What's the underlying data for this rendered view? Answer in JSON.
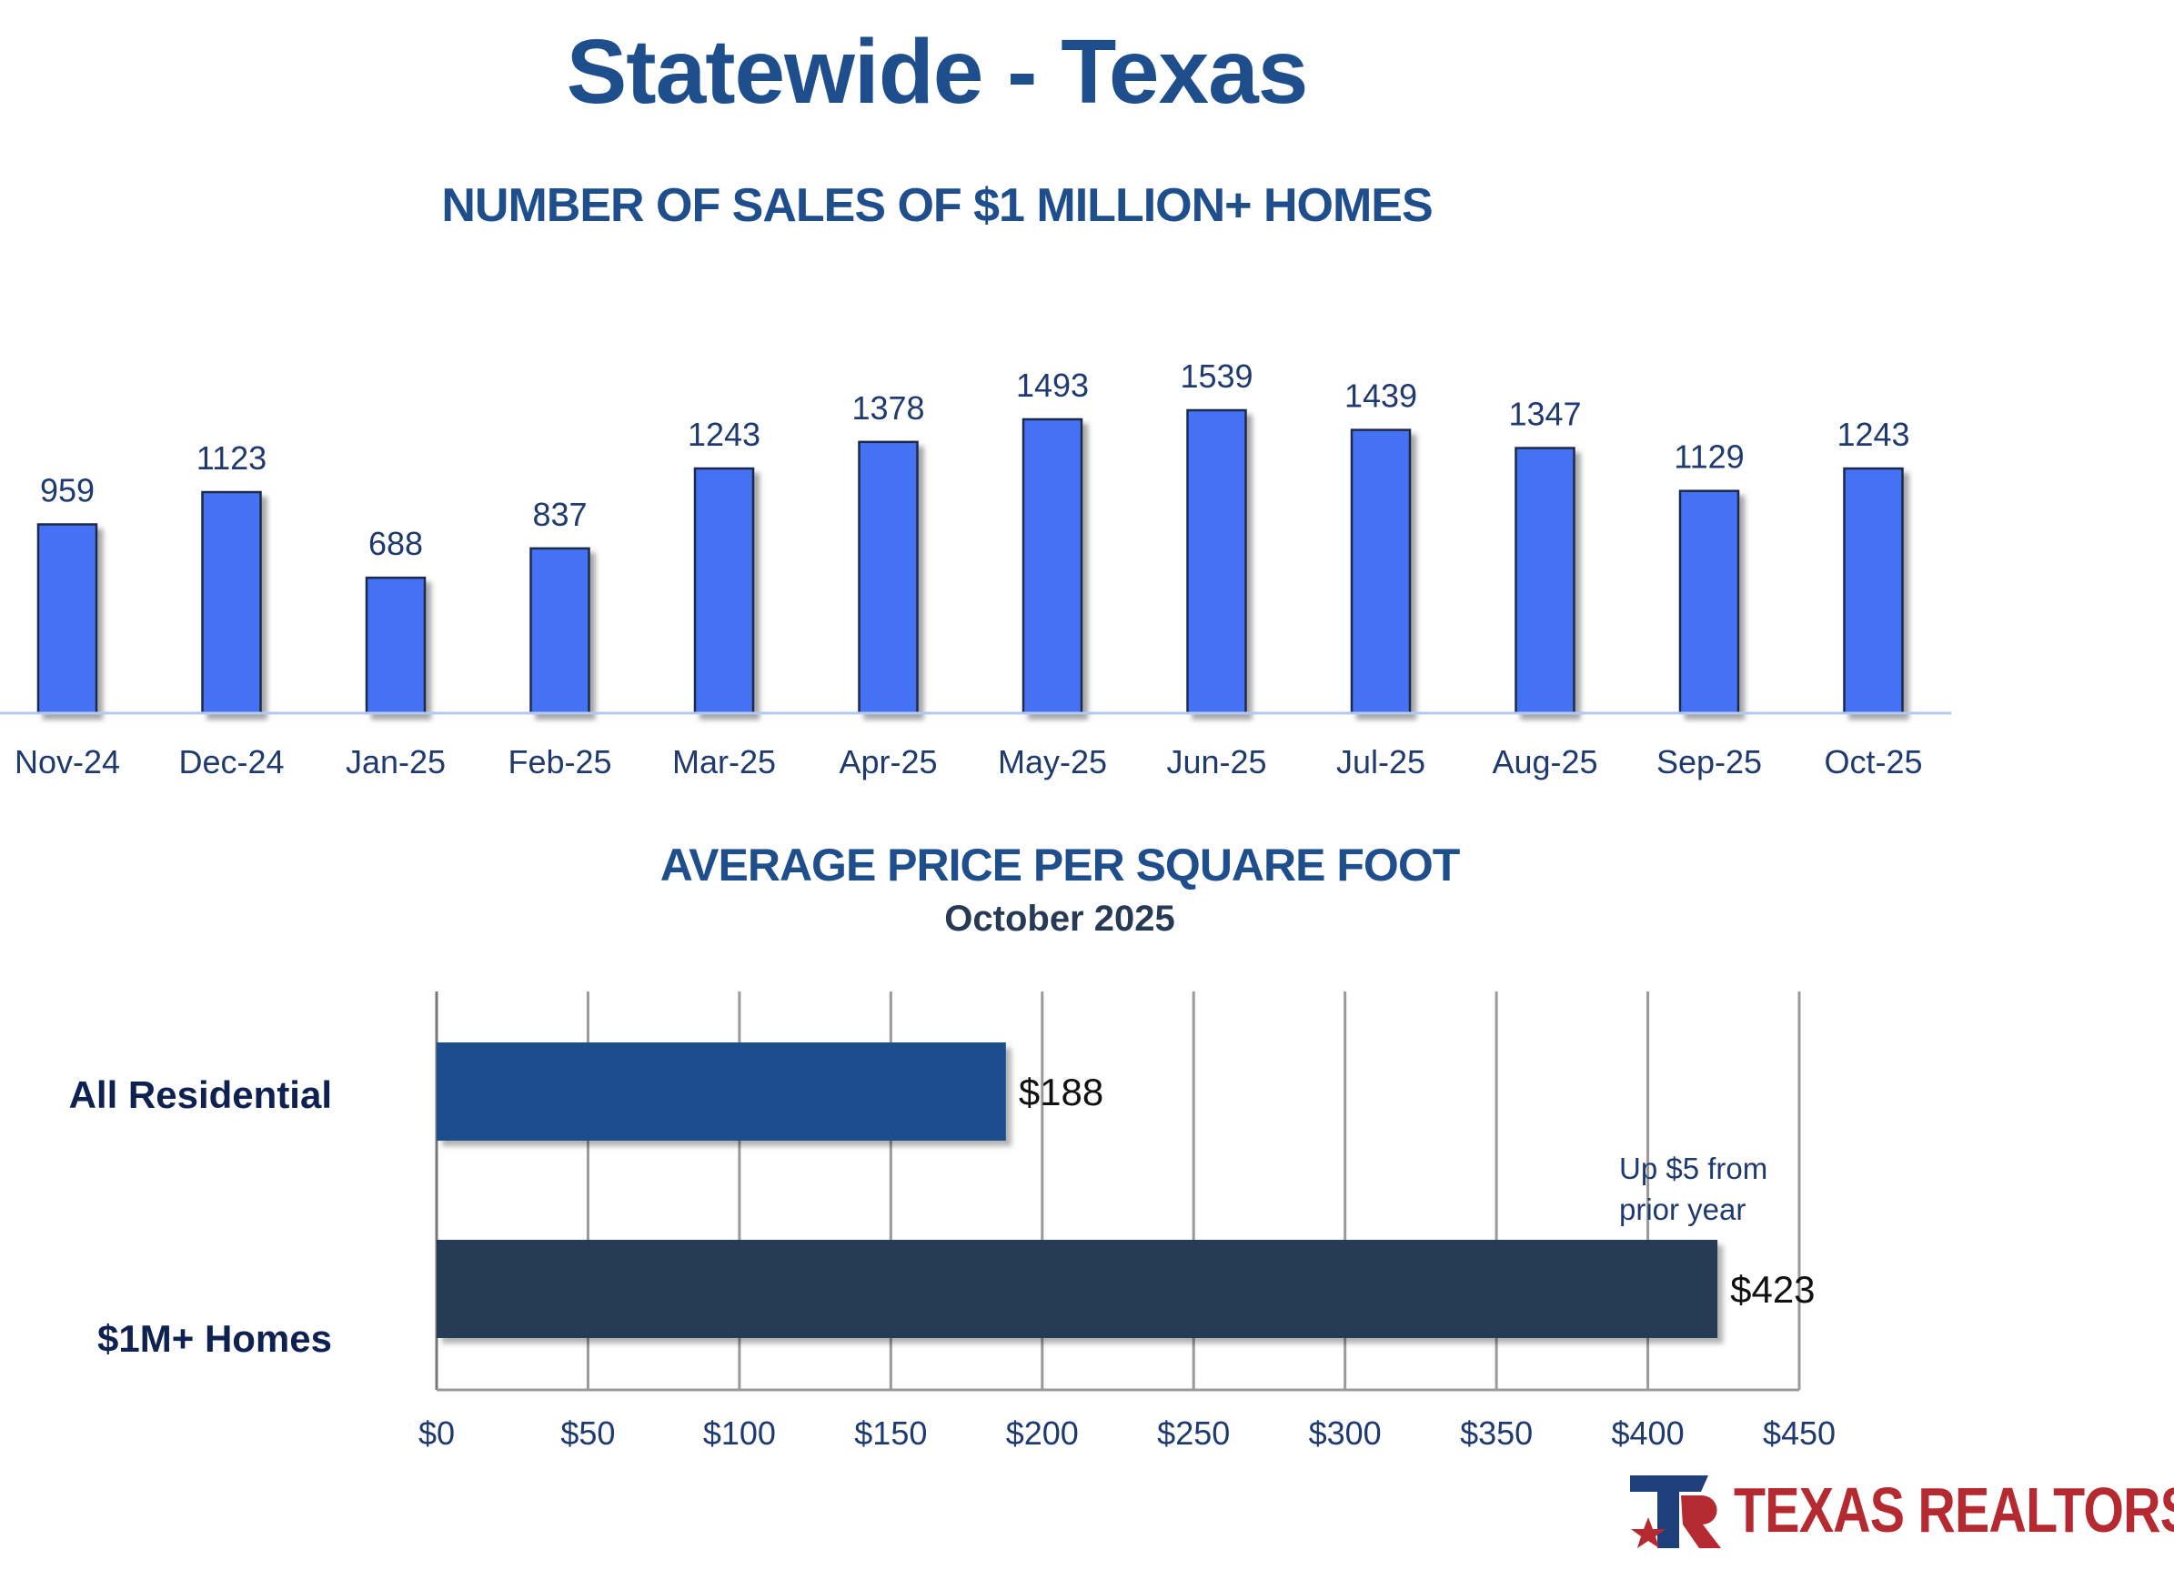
{
  "header": {
    "title": "Statewide - Texas",
    "subtitle": "NUMBER OF SALES OF $1 MILLION+ HOMES",
    "price_title": "AVERAGE PRICE PER SQUARE FOOT",
    "price_date": "October 2025"
  },
  "chart_data": [
    {
      "type": "bar",
      "title": "NUMBER OF SALES OF $1 MILLION+ HOMES",
      "categories": [
        "Nov-24",
        "Dec-24",
        "Jan-25",
        "Feb-25",
        "Mar-25",
        "Apr-25",
        "May-25",
        "Jun-25",
        "Jul-25",
        "Aug-25",
        "Sep-25",
        "Oct-25"
      ],
      "values": [
        959,
        1123,
        688,
        837,
        1243,
        1378,
        1493,
        1539,
        1439,
        1347,
        1129,
        1243
      ],
      "labels": [
        "959",
        "1123",
        "688",
        "837",
        "1243",
        "1378",
        "1493",
        "1539",
        "1439",
        "1347",
        "1129",
        "1243"
      ],
      "ylim": [
        0,
        1600
      ],
      "color": "#4472f4",
      "grid": false
    },
    {
      "type": "bar",
      "orientation": "horizontal",
      "title": "AVERAGE PRICE PER SQUARE FOOT",
      "subtitle": "October 2025",
      "categories": [
        "All Residential",
        "$1M+ Homes"
      ],
      "values": [
        188,
        423
      ],
      "labels": [
        "$188",
        "$423"
      ],
      "colors": [
        "#1f4e8c",
        "#263a55"
      ],
      "xlim": [
        0,
        450
      ],
      "xticks": [
        "$0",
        "$50",
        "$100",
        "$150",
        "$200",
        "$250",
        "$300",
        "$350",
        "$400",
        "$450"
      ],
      "annotation": [
        "Up $5 from",
        "prior year"
      ],
      "grid": true
    }
  ],
  "logo": {
    "text": "TEXAS REALTORS"
  }
}
